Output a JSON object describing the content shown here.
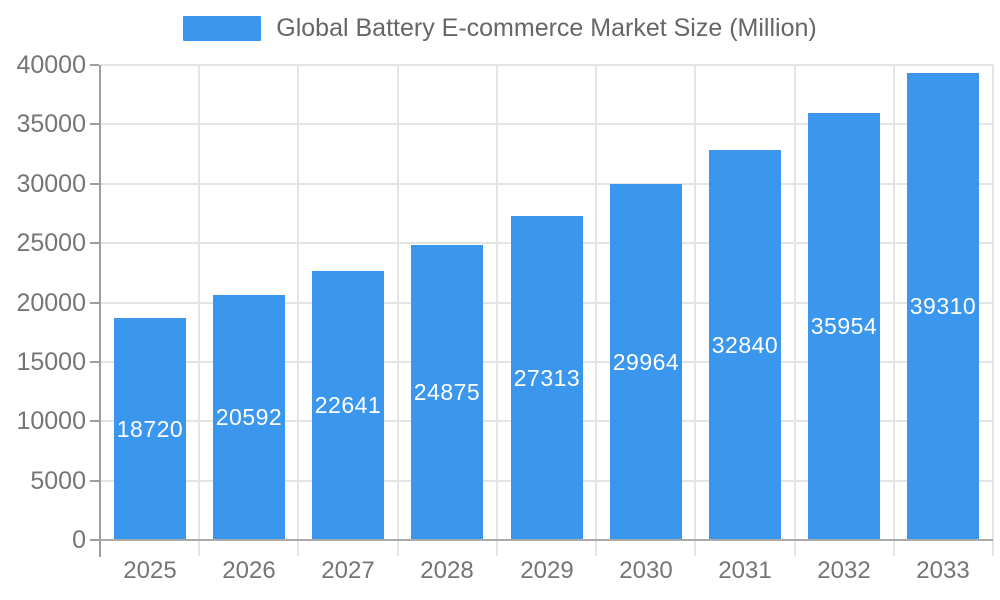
{
  "chart_data": {
    "type": "bar",
    "title": "Global Battery E-commerce Market Size (Million)",
    "legend": {
      "position": "top",
      "items": [
        "Global Battery E-commerce Market Size (Million)"
      ]
    },
    "categories": [
      "2025",
      "2026",
      "2027",
      "2028",
      "2029",
      "2030",
      "2031",
      "2032",
      "2033"
    ],
    "values": [
      18720,
      20592,
      22641,
      24875,
      27313,
      29964,
      32840,
      35954,
      39310
    ],
    "value_labels_shown": true,
    "xlabel": "",
    "ylabel": "",
    "ylim": [
      0,
      40000
    ],
    "ytick_step": 5000,
    "yticks": [
      0,
      5000,
      10000,
      15000,
      20000,
      25000,
      30000,
      35000,
      40000
    ],
    "grid": true,
    "colors": {
      "bar": "#3b97ed",
      "grid": "#e4e4e4",
      "axis": "#9e9e9e",
      "tick_label": "#757575",
      "legend_text": "#666666",
      "value_label": "#ffffff",
      "background": "#ffffff"
    }
  }
}
